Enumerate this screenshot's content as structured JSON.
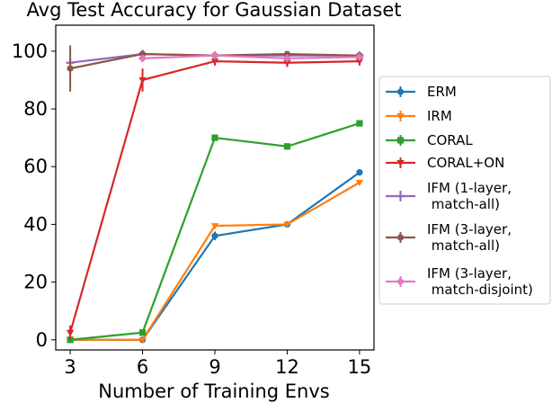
{
  "chart_data": {
    "type": "line",
    "title": "Avg Test Accuracy for Gaussian Dataset",
    "xlabel": "Number of Training Envs",
    "ylabel": "",
    "x": [
      3,
      6,
      9,
      12,
      15
    ],
    "xticks": [
      3,
      6,
      9,
      12,
      15
    ],
    "xtick_labels": [
      "3",
      "6",
      "9",
      "12",
      "15"
    ],
    "yticks": [
      0,
      20,
      40,
      60,
      80,
      100
    ],
    "ytick_labels": [
      "0",
      "20",
      "40",
      "60",
      "80",
      "100"
    ],
    "xlim": [
      2.4,
      15.6
    ],
    "ylim": [
      -3.5,
      109
    ],
    "grid": false,
    "legend_position": "outside-right",
    "series": [
      {
        "name": "ERM",
        "color": "#1f77b4",
        "marker": "circle",
        "values": [
          0,
          0,
          36,
          40,
          58
        ],
        "errors": [
          0,
          0,
          1.5,
          0.5,
          0.5
        ]
      },
      {
        "name": "IRM",
        "color": "#ff7f0e",
        "marker": "triangle-down",
        "values": [
          0,
          0,
          39.5,
          40,
          54.5
        ],
        "errors": [
          0,
          0,
          0.5,
          0.5,
          0.5
        ]
      },
      {
        "name": "CORAL",
        "color": "#2ca02c",
        "marker": "square",
        "values": [
          0,
          2.5,
          70,
          67,
          75
        ],
        "errors": [
          0,
          0.5,
          0.5,
          0.5,
          0.5
        ]
      },
      {
        "name": "CORAL+ON",
        "color": "#d62728",
        "marker": "triangle-down",
        "values": [
          2.5,
          90,
          96.5,
          96,
          96.5
        ],
        "errors": [
          2.5,
          4,
          1.5,
          1.5,
          1.5
        ]
      },
      {
        "name": "IFM (1-layer,\n match-all)",
        "color": "#9467bd",
        "marker": "cross",
        "values": [
          96,
          99,
          98.5,
          98.5,
          98.5
        ],
        "errors": [
          0.5,
          0.5,
          0.5,
          0.5,
          0.5
        ]
      },
      {
        "name": "IFM (3-layer,\n match-all)",
        "color": "#8c564b",
        "marker": "circle",
        "values": [
          94,
          99,
          98.5,
          99,
          98.5
        ],
        "errors": [
          8,
          0.5,
          0.5,
          0.5,
          0.5
        ]
      },
      {
        "name": "IFM (3-layer,\n match-disjoint)",
        "color": "#e377c2",
        "marker": "diamond",
        "values": [
          null,
          97.5,
          98.5,
          97.5,
          98
        ],
        "errors": [
          0,
          0.5,
          0.5,
          0.5,
          0.5
        ]
      }
    ]
  }
}
